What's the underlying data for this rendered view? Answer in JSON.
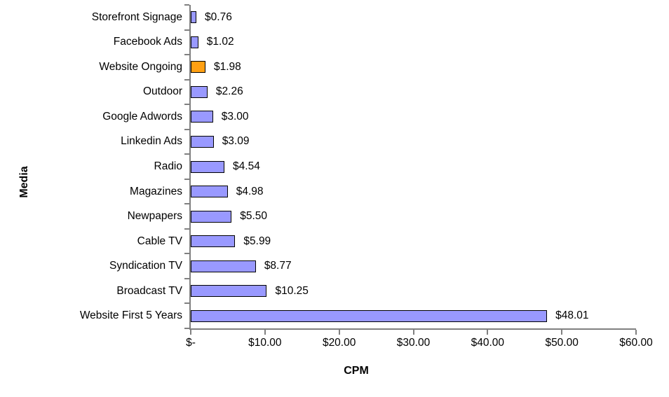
{
  "chart_data": {
    "type": "bar",
    "orientation": "horizontal",
    "xlabel": "CPM",
    "ylabel": "Media",
    "categories": [
      "Storefront Signage",
      "Facebook Ads",
      "Website Ongoing",
      "Outdoor",
      "Google Adwords",
      "Linkedin Ads",
      "Radio",
      "Magazines",
      "Newpapers",
      "Cable TV",
      "Syndication TV",
      "Broadcast TV",
      "Website First 5 Years"
    ],
    "values": [
      0.76,
      1.02,
      1.98,
      2.26,
      3.0,
      3.09,
      4.54,
      4.98,
      5.5,
      5.99,
      8.77,
      10.25,
      48.01
    ],
    "value_labels": [
      "$0.76",
      "$1.02",
      "$1.98",
      "$2.26",
      "$3.00",
      "$3.09",
      "$4.54",
      "$4.98",
      "$5.50",
      "$5.99",
      "$8.77",
      "$10.25",
      "$48.01"
    ],
    "highlight_index": 2,
    "highlighted_category": "Website Ongoing",
    "xlim": [
      0,
      60
    ],
    "x_tick_values": [
      0,
      10,
      20,
      30,
      40,
      50,
      60
    ],
    "x_tick_labels": [
      "$-",
      "$10.00",
      "$20.00",
      "$30.00",
      "$40.00",
      "$50.00",
      "$60.00"
    ],
    "grid": false,
    "legend": false,
    "colors": {
      "bar_fill": "#9999FF",
      "highlight_fill": "#FFA013",
      "bar_border": "#000000",
      "axis_line": "#808080",
      "text": "#000000",
      "background": "#FFFFFF"
    }
  }
}
